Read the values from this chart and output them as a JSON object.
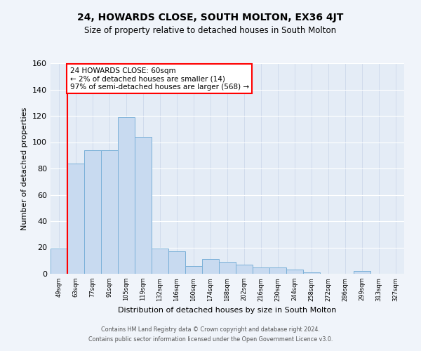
{
  "title": "24, HOWARDS CLOSE, SOUTH MOLTON, EX36 4JT",
  "subtitle": "Size of property relative to detached houses in South Molton",
  "xlabel": "Distribution of detached houses by size in South Molton",
  "ylabel": "Number of detached properties",
  "footer_line1": "Contains HM Land Registry data © Crown copyright and database right 2024.",
  "footer_line2": "Contains public sector information licensed under the Open Government Licence v3.0.",
  "bin_labels": [
    "49sqm",
    "63sqm",
    "77sqm",
    "91sqm",
    "105sqm",
    "119sqm",
    "132sqm",
    "146sqm",
    "160sqm",
    "174sqm",
    "188sqm",
    "202sqm",
    "216sqm",
    "230sqm",
    "244sqm",
    "258sqm",
    "272sqm",
    "286sqm",
    "299sqm",
    "313sqm",
    "327sqm"
  ],
  "bar_heights": [
    19,
    84,
    94,
    94,
    119,
    104,
    19,
    17,
    6,
    11,
    9,
    7,
    5,
    5,
    3,
    1,
    0,
    0,
    2,
    0,
    0
  ],
  "bar_color": "#c8daf0",
  "bar_edge_color": "#7ab0d8",
  "annotation_title": "24 HOWARDS CLOSE: 60sqm",
  "annotation_line2": "← 2% of detached houses are smaller (14)",
  "annotation_line3": "97% of semi-detached houses are larger (568) →",
  "annotation_box_edge_color": "red",
  "vline_x_index": 1,
  "vline_color": "red",
  "ylim": [
    0,
    160
  ],
  "yticks": [
    0,
    20,
    40,
    60,
    80,
    100,
    120,
    140,
    160
  ],
  "background_color": "#f0f4fa",
  "plot_background_color": "#e4ecf6",
  "grid_color": "#c8d4e8"
}
